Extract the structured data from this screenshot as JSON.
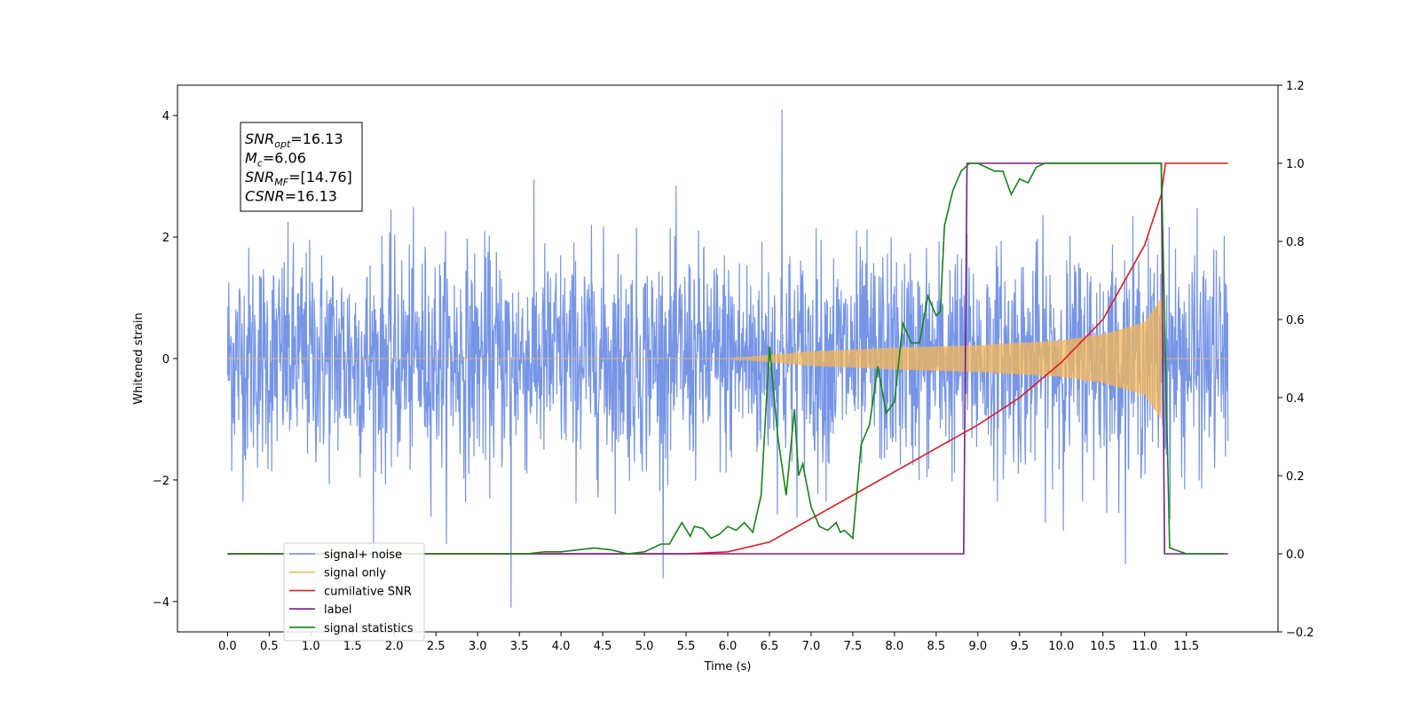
{
  "chart_data": {
    "type": "line",
    "xlabel": "Time (s)",
    "ylabel_left": "Whitened strain",
    "ylabel_right": "",
    "xlim": [
      -0.6,
      12.6
    ],
    "xticks": [
      "0.0",
      "0.5",
      "1.0",
      "1.5",
      "2.0",
      "2.5",
      "3.0",
      "3.5",
      "4.0",
      "4.5",
      "5.0",
      "5.5",
      "6.0",
      "6.5",
      "7.0",
      "7.5",
      "8.0",
      "8.5",
      "9.0",
      "9.5",
      "10.0",
      "10.5",
      "11.0",
      "11.5"
    ],
    "ylim_left": [
      -4.5,
      4.5
    ],
    "yticks_left": [
      "−4",
      "−2",
      "0",
      "2",
      "4"
    ],
    "ylim_right": [
      -0.2,
      1.2
    ],
    "yticks_right": [
      "−0.2",
      "0.0",
      "0.2",
      "0.4",
      "0.6",
      "0.8",
      "1.0",
      "1.2"
    ],
    "grid": false,
    "legend_position": "bottom-left",
    "annotation": {
      "lines": [
        {
          "base": "SNR",
          "sub": "opt",
          "value": "=16.13"
        },
        {
          "base": "M",
          "sub": "c",
          "value": "=6.06"
        },
        {
          "base": "SNR",
          "sub": "MF",
          "value": "=[14.76]"
        },
        {
          "base": "CSNR",
          "sub": "",
          "value": "=16.13"
        }
      ]
    },
    "series": [
      {
        "name": "signal+ noise",
        "axis": "left",
        "color": "#6f8fe6",
        "kind": "noisy strain, std approx 0.9, spikes to ~4.1 near t=6.65 and ~-4.1 near t=3.4",
        "t_range": [
          0.0,
          12.0
        ]
      },
      {
        "name": "signal only",
        "axis": "left",
        "color": "#f5b754",
        "kind": "chirp, amplitude grows from 0 at t~6 to ~1.0 at t~11.2 then stops",
        "envelope": {
          "t": [
            6.0,
            7.0,
            8.0,
            9.0,
            10.0,
            10.5,
            11.0,
            11.2
          ],
          "amp": [
            0.0,
            0.12,
            0.18,
            0.22,
            0.3,
            0.4,
            0.6,
            1.0
          ]
        }
      },
      {
        "name": "cumilative SNR",
        "axis": "right",
        "color": "#e8191b",
        "x": [
          0.0,
          5.5,
          6.0,
          6.5,
          7.0,
          7.5,
          8.0,
          8.5,
          9.0,
          9.5,
          10.0,
          10.5,
          11.0,
          11.2,
          11.25,
          12.0
        ],
        "y": [
          0.0,
          0.0,
          0.005,
          0.03,
          0.09,
          0.15,
          0.21,
          0.27,
          0.33,
          0.4,
          0.49,
          0.6,
          0.79,
          0.92,
          1.0,
          1.0
        ]
      },
      {
        "name": "label",
        "axis": "right",
        "color": "#7b1d86",
        "x": [
          0.0,
          8.83,
          8.87,
          11.2,
          11.24,
          12.0
        ],
        "y": [
          0.0,
          0.0,
          1.0,
          1.0,
          0.0,
          0.0
        ]
      },
      {
        "name": "signal statistics",
        "axis": "right",
        "color": "#158415",
        "x": [
          0.0,
          3.6,
          3.8,
          4.0,
          4.2,
          4.4,
          4.6,
          4.8,
          5.0,
          5.2,
          5.3,
          5.45,
          5.55,
          5.6,
          5.7,
          5.8,
          5.9,
          6.0,
          6.1,
          6.2,
          6.3,
          6.4,
          6.5,
          6.6,
          6.7,
          6.8,
          6.85,
          6.9,
          7.0,
          7.1,
          7.2,
          7.3,
          7.35,
          7.4,
          7.5,
          7.6,
          7.7,
          7.8,
          7.9,
          8.0,
          8.1,
          8.2,
          8.3,
          8.4,
          8.5,
          8.55,
          8.6,
          8.7,
          8.8,
          8.9,
          9.0,
          9.1,
          9.2,
          9.3,
          9.4,
          9.5,
          9.6,
          9.7,
          9.8,
          9.9,
          10.0,
          10.5,
          11.0,
          11.2,
          11.25,
          11.3,
          11.5,
          11.95
        ],
        "y": [
          0.0,
          0.0,
          0.005,
          0.005,
          0.01,
          0.015,
          0.01,
          0.0,
          0.005,
          0.025,
          0.025,
          0.08,
          0.045,
          0.07,
          0.065,
          0.04,
          0.05,
          0.07,
          0.06,
          0.08,
          0.055,
          0.15,
          0.53,
          0.3,
          0.15,
          0.37,
          0.2,
          0.23,
          0.12,
          0.07,
          0.06,
          0.08,
          0.055,
          0.06,
          0.04,
          0.28,
          0.33,
          0.48,
          0.36,
          0.39,
          0.59,
          0.54,
          0.54,
          0.66,
          0.61,
          0.62,
          0.84,
          0.93,
          0.98,
          1.0,
          1.0,
          0.99,
          0.98,
          0.98,
          0.92,
          0.96,
          0.95,
          0.99,
          1.0,
          1.0,
          1.0,
          1.0,
          1.0,
          1.0,
          0.5,
          0.015,
          0.0,
          0.0
        ]
      }
    ]
  }
}
